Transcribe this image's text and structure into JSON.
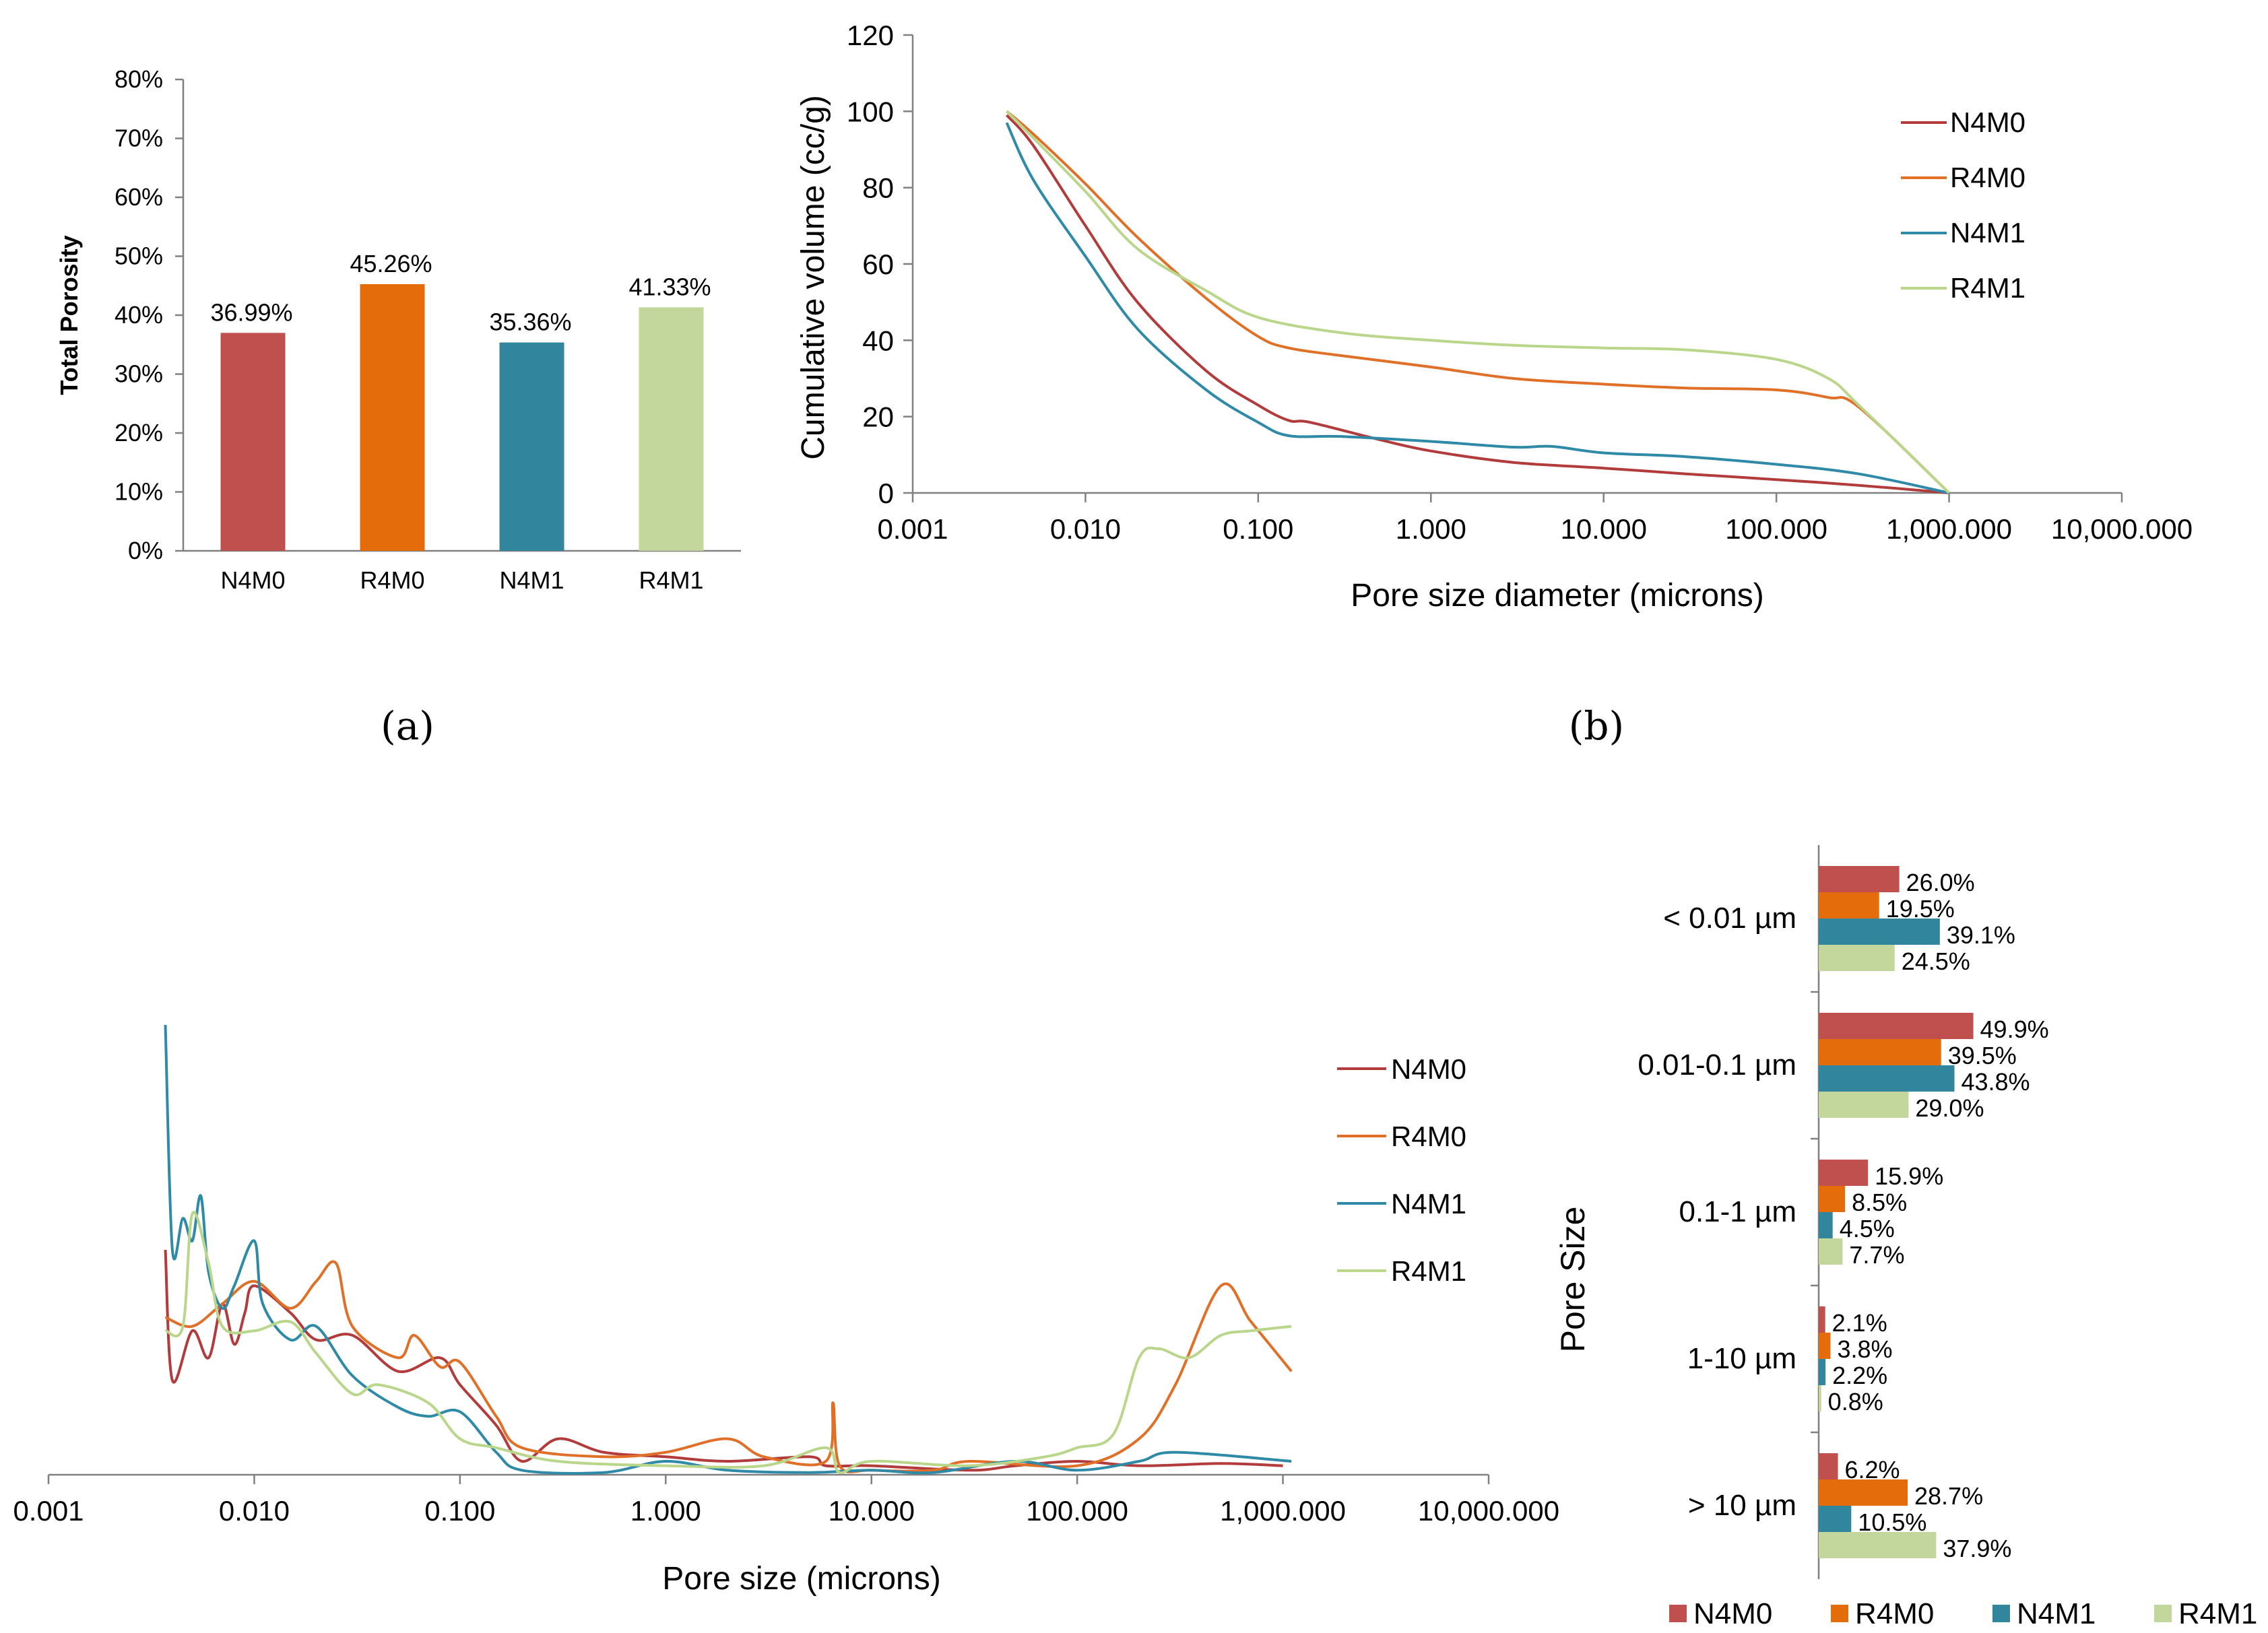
{
  "colors": {
    "N4M0": "#b23b3b",
    "R4M0": "#e07028",
    "N4M1": "#2f8aa8",
    "R4M1": "#b9d68a",
    "bar_N4M0": "#c0504d",
    "bar_R4M0": "#e46c0a",
    "bar_N4M1": "#31859c",
    "bar_R4M1": "#c3d69b"
  },
  "panel_labels": {
    "a": "(a)",
    "b": "(b)"
  },
  "chart_data": [
    {
      "id": "a",
      "type": "bar",
      "categories": [
        "N4M0",
        "R4M0",
        "N4M1",
        "R4M1"
      ],
      "values": [
        36.99,
        45.26,
        35.36,
        41.33
      ],
      "value_labels": [
        "36.99%",
        "45.26%",
        "35.36%",
        "41.33%"
      ],
      "ylabel": "Total Porosity",
      "ylim": [
        0,
        80
      ],
      "yticks": [
        "0%",
        "10%",
        "20%",
        "30%",
        "40%",
        "50%",
        "60%",
        "70%",
        "80%"
      ]
    },
    {
      "id": "b",
      "type": "line",
      "xscale": "log",
      "xlabel": "Pore size diameter (microns)",
      "ylabel": "Cumulative volume (cc/g)",
      "ylim": [
        0,
        120
      ],
      "yticks": [
        "0",
        "20",
        "40",
        "60",
        "80",
        "100",
        "120"
      ],
      "xticks": [
        "0.001",
        "0.010",
        "0.100",
        "1.000",
        "10.000",
        "100.000",
        "1,000.000",
        "10,000.000"
      ],
      "legend_position": "top-right",
      "series": [
        {
          "name": "N4M0",
          "points": [
            [
              0.0035,
              99
            ],
            [
              0.005,
              91
            ],
            [
              0.01,
              70
            ],
            [
              0.02,
              50
            ],
            [
              0.05,
              32
            ],
            [
              0.1,
              23
            ],
            [
              0.15,
              19
            ],
            [
              0.2,
              18.5
            ],
            [
              0.5,
              14
            ],
            [
              1,
              11
            ],
            [
              3,
              8
            ],
            [
              10,
              6.5
            ],
            [
              30,
              5
            ],
            [
              100,
              3.5
            ],
            [
              300,
              2
            ],
            [
              1000,
              0
            ]
          ]
        },
        {
          "name": "R4M0",
          "points": [
            [
              0.0035,
              100
            ],
            [
              0.005,
              94
            ],
            [
              0.01,
              81
            ],
            [
              0.02,
              67
            ],
            [
              0.05,
              51
            ],
            [
              0.1,
              41
            ],
            [
              0.15,
              38
            ],
            [
              0.3,
              36
            ],
            [
              1,
              33
            ],
            [
              3,
              30
            ],
            [
              10,
              28.5
            ],
            [
              30,
              27.5
            ],
            [
              100,
              27
            ],
            [
              200,
              25
            ],
            [
              300,
              22.5
            ],
            [
              1000,
              0
            ]
          ]
        },
        {
          "name": "N4M1",
          "points": [
            [
              0.0035,
              97
            ],
            [
              0.005,
              82
            ],
            [
              0.01,
              62
            ],
            [
              0.02,
              43
            ],
            [
              0.05,
              27
            ],
            [
              0.1,
              18.5
            ],
            [
              0.15,
              15
            ],
            [
              0.3,
              14.8
            ],
            [
              1,
              13.5
            ],
            [
              3,
              12
            ],
            [
              5,
              12.2
            ],
            [
              10,
              10.5
            ],
            [
              30,
              9.5
            ],
            [
              100,
              7.5
            ],
            [
              300,
              5
            ],
            [
              1000,
              0
            ]
          ]
        },
        {
          "name": "R4M1",
          "points": [
            [
              0.0035,
              100
            ],
            [
              0.005,
              93
            ],
            [
              0.01,
              79
            ],
            [
              0.02,
              64
            ],
            [
              0.05,
              53
            ],
            [
              0.1,
              46
            ],
            [
              0.3,
              42
            ],
            [
              1,
              40
            ],
            [
              3,
              38.7
            ],
            [
              10,
              38
            ],
            [
              30,
              37.5
            ],
            [
              100,
              35
            ],
            [
              200,
              30
            ],
            [
              300,
              23
            ],
            [
              1000,
              0
            ]
          ]
        }
      ]
    },
    {
      "id": "c",
      "type": "line",
      "xscale": "log",
      "xlabel": "Pore size (microns)",
      "xticks": [
        "0.001",
        "0.010",
        "0.100",
        "1.000",
        "10.000",
        "100.000",
        "1,000.000",
        "10,000.000"
      ],
      "legend_position": "right",
      "series": [
        {
          "name": "N4M0",
          "points": [
            [
              0.0037,
              0.5
            ],
            [
              0.004,
              0.21
            ],
            [
              0.005,
              0.32
            ],
            [
              0.006,
              0.26
            ],
            [
              0.007,
              0.38
            ],
            [
              0.008,
              0.29
            ],
            [
              0.009,
              0.36
            ],
            [
              0.01,
              0.42
            ],
            [
              0.015,
              0.36
            ],
            [
              0.02,
              0.3
            ],
            [
              0.03,
              0.31
            ],
            [
              0.05,
              0.23
            ],
            [
              0.08,
              0.26
            ],
            [
              0.1,
              0.2
            ],
            [
              0.15,
              0.11
            ],
            [
              0.2,
              0.03
            ],
            [
              0.3,
              0.08
            ],
            [
              0.5,
              0.05
            ],
            [
              1,
              0.04
            ],
            [
              2,
              0.03
            ],
            [
              5,
              0.04
            ],
            [
              6,
              0.02
            ],
            [
              10,
              0.02
            ],
            [
              30,
              0.01
            ],
            [
              50,
              0.02
            ],
            [
              100,
              0.03
            ],
            [
              200,
              0.02
            ],
            [
              500,
              0.025
            ],
            [
              1000,
              0.02
            ]
          ]
        },
        {
          "name": "R4M0",
          "points": [
            [
              0.0037,
              0.35
            ],
            [
              0.005,
              0.33
            ],
            [
              0.007,
              0.38
            ],
            [
              0.01,
              0.43
            ],
            [
              0.015,
              0.37
            ],
            [
              0.02,
              0.43
            ],
            [
              0.025,
              0.47
            ],
            [
              0.03,
              0.33
            ],
            [
              0.05,
              0.26
            ],
            [
              0.06,
              0.31
            ],
            [
              0.08,
              0.24
            ],
            [
              0.1,
              0.25
            ],
            [
              0.15,
              0.13
            ],
            [
              0.2,
              0.06
            ],
            [
              0.5,
              0.04
            ],
            [
              1,
              0.05
            ],
            [
              2,
              0.08
            ],
            [
              3,
              0.04
            ],
            [
              6,
              0.03
            ],
            [
              6.5,
              0.16
            ],
            [
              7,
              0.02
            ],
            [
              10,
              0.01
            ],
            [
              20,
              0.01
            ],
            [
              30,
              0.03
            ],
            [
              100,
              0.02
            ],
            [
              200,
              0.08
            ],
            [
              300,
              0.2
            ],
            [
              500,
              0.42
            ],
            [
              700,
              0.34
            ],
            [
              1100,
              0.23
            ]
          ]
        },
        {
          "name": "N4M1",
          "points": [
            [
              0.0037,
              1.0
            ],
            [
              0.004,
              0.5
            ],
            [
              0.0045,
              0.57
            ],
            [
              0.005,
              0.52
            ],
            [
              0.0055,
              0.62
            ],
            [
              0.006,
              0.45
            ],
            [
              0.007,
              0.37
            ],
            [
              0.008,
              0.42
            ],
            [
              0.01,
              0.52
            ],
            [
              0.011,
              0.38
            ],
            [
              0.015,
              0.3
            ],
            [
              0.02,
              0.33
            ],
            [
              0.03,
              0.22
            ],
            [
              0.05,
              0.15
            ],
            [
              0.07,
              0.13
            ],
            [
              0.1,
              0.14
            ],
            [
              0.15,
              0.05
            ],
            [
              0.2,
              0.01
            ],
            [
              0.5,
              0.005
            ],
            [
              1,
              0.03
            ],
            [
              2,
              0.01
            ],
            [
              5,
              0.005
            ],
            [
              10,
              0.01
            ],
            [
              20,
              0.005
            ],
            [
              50,
              0.03
            ],
            [
              100,
              0.01
            ],
            [
              200,
              0.03
            ],
            [
              300,
              0.05
            ],
            [
              1100,
              0.03
            ]
          ]
        },
        {
          "name": "R4M1",
          "points": [
            [
              0.0037,
              0.32
            ],
            [
              0.0045,
              0.33
            ],
            [
              0.005,
              0.58
            ],
            [
              0.006,
              0.47
            ],
            [
              0.007,
              0.33
            ],
            [
              0.01,
              0.32
            ],
            [
              0.015,
              0.34
            ],
            [
              0.02,
              0.27
            ],
            [
              0.03,
              0.18
            ],
            [
              0.04,
              0.2
            ],
            [
              0.07,
              0.16
            ],
            [
              0.1,
              0.08
            ],
            [
              0.15,
              0.06
            ],
            [
              0.3,
              0.03
            ],
            [
              1,
              0.02
            ],
            [
              3,
              0.02
            ],
            [
              6,
              0.06
            ],
            [
              7,
              0.005
            ],
            [
              10,
              0.03
            ],
            [
              30,
              0.02
            ],
            [
              70,
              0.04
            ],
            [
              100,
              0.06
            ],
            [
              150,
              0.09
            ],
            [
              200,
              0.26
            ],
            [
              250,
              0.28
            ],
            [
              350,
              0.26
            ],
            [
              500,
              0.31
            ],
            [
              700,
              0.32
            ],
            [
              1100,
              0.33
            ]
          ]
        }
      ]
    },
    {
      "id": "d",
      "type": "bar",
      "orientation": "horizontal",
      "ylabel": "Pore Size",
      "categories": [
        "< 0.01 µm",
        "0.01-0.1 µm",
        "0.1-1 µm",
        "1-10 µm",
        "> 10 µm"
      ],
      "series": [
        {
          "name": "N4M0",
          "values": [
            26.0,
            49.9,
            15.9,
            2.1,
            6.2
          ],
          "labels": [
            "26.0%",
            "49.9%",
            "15.9%",
            "2.1%",
            "6.2%"
          ]
        },
        {
          "name": "R4M0",
          "values": [
            19.5,
            39.5,
            8.5,
            3.8,
            28.7
          ],
          "labels": [
            "19.5%",
            "39.5%",
            "8.5%",
            "3.8%",
            "28.7%"
          ]
        },
        {
          "name": "N4M1",
          "values": [
            39.1,
            43.8,
            4.5,
            2.2,
            10.5
          ],
          "labels": [
            "39.1%",
            "43.8%",
            "4.5%",
            "2.2%",
            "10.5%"
          ]
        },
        {
          "name": "R4M1",
          "values": [
            24.5,
            29.0,
            7.7,
            0.8,
            37.9
          ],
          "labels": [
            "24.5%",
            "29.0%",
            "7.7%",
            "0.8%",
            "37.9%"
          ]
        }
      ],
      "legend_position": "bottom"
    }
  ]
}
